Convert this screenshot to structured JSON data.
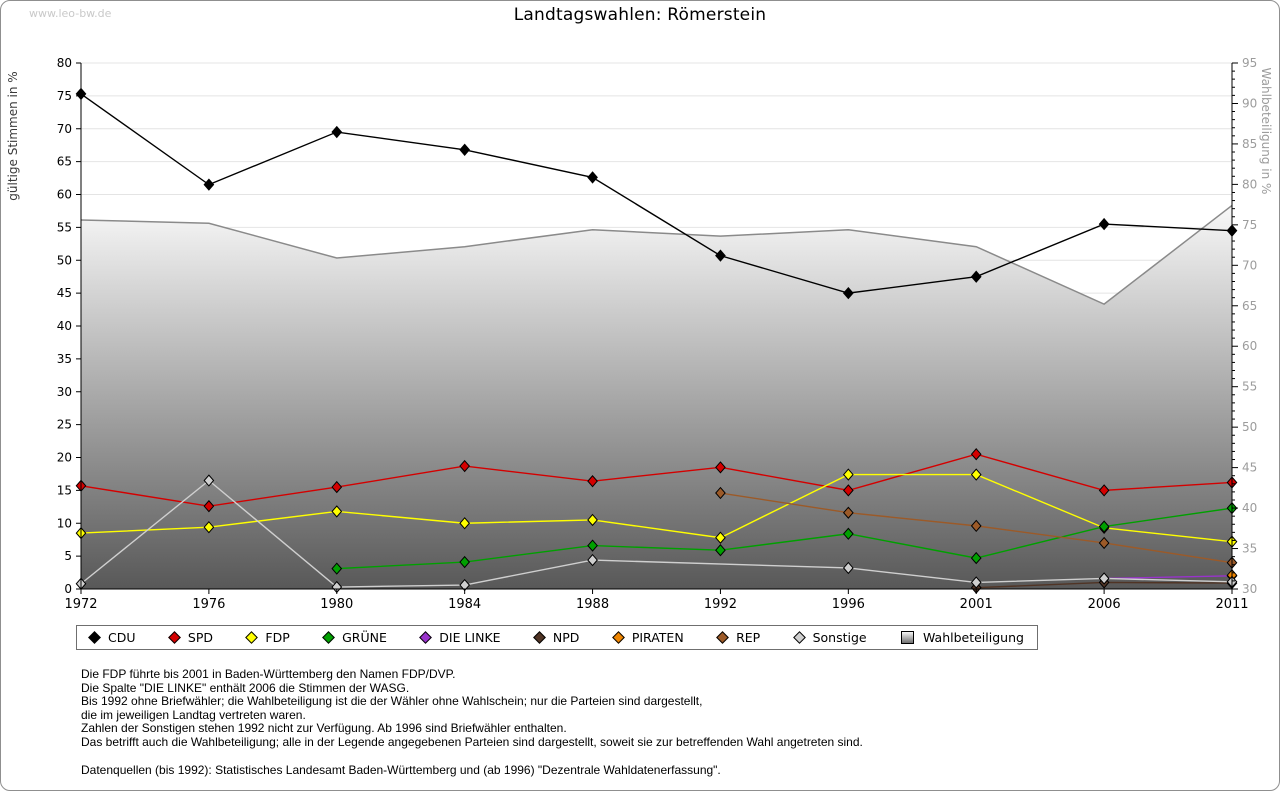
{
  "page": {
    "watermark": "www.leo-bw.de",
    "title": "Landtagswahlen: Römerstein"
  },
  "chart_data": {
    "type": "line",
    "title": "Landtagswahlen: Römerstein",
    "categories": [
      "1972",
      "1976",
      "1980",
      "1984",
      "1988",
      "1992",
      "1996",
      "2001",
      "2006",
      "2011"
    ],
    "left_axis": {
      "label": "gültige Stimmen in %",
      "min": 0,
      "max": 80,
      "tick_step": 5
    },
    "right_axis": {
      "label": "Wahlbeteiligung in %",
      "min": 30,
      "max": 95,
      "tick_step": 5
    },
    "grid": true,
    "legend_position": "bottom",
    "series": [
      {
        "name": "CDU",
        "type": "line",
        "axis": "left",
        "color": "#000000",
        "values": [
          75.3,
          61.5,
          69.5,
          66.8,
          62.6,
          50.7,
          45.0,
          47.5,
          55.5,
          54.5
        ]
      },
      {
        "name": "SPD",
        "type": "line",
        "axis": "left",
        "color": "#d40000",
        "values": [
          15.7,
          12.6,
          15.5,
          18.7,
          16.4,
          18.5,
          15.0,
          20.5,
          15.0,
          16.2
        ]
      },
      {
        "name": "FDP",
        "type": "line",
        "axis": "left",
        "color": "#ffff00",
        "values": [
          8.5,
          9.4,
          11.8,
          10.0,
          10.5,
          7.8,
          17.4,
          17.4,
          9.3,
          7.2
        ]
      },
      {
        "name": "GRÜNE",
        "type": "line",
        "axis": "left",
        "color": "#00a000",
        "values": [
          null,
          null,
          3.1,
          4.1,
          6.6,
          5.9,
          8.4,
          4.7,
          9.5,
          12.3
        ]
      },
      {
        "name": "DIE LINKE",
        "type": "line",
        "axis": "left",
        "color": "#9933cc",
        "values": [
          null,
          null,
          null,
          null,
          null,
          null,
          null,
          null,
          1.6,
          2.0
        ]
      },
      {
        "name": "NPD",
        "type": "line",
        "axis": "left",
        "color": "#503425",
        "values": [
          null,
          null,
          null,
          null,
          null,
          null,
          null,
          0.2,
          1.0,
          0.9
        ]
      },
      {
        "name": "PIRATEN",
        "type": "line",
        "axis": "left",
        "color": "#ee8500",
        "values": [
          null,
          null,
          null,
          null,
          null,
          null,
          null,
          null,
          null,
          2.1
        ]
      },
      {
        "name": "REP",
        "type": "line",
        "axis": "left",
        "color": "#9c5a28",
        "values": [
          null,
          null,
          null,
          null,
          null,
          14.6,
          11.6,
          9.6,
          7.0,
          4.0
        ]
      },
      {
        "name": "Sonstige",
        "type": "line",
        "axis": "left",
        "color": "#cfcfcf",
        "bridge_gaps": true,
        "values": [
          0.8,
          16.5,
          0.3,
          0.6,
          4.4,
          null,
          3.2,
          1.0,
          1.6,
          1.1
        ]
      },
      {
        "name": "Wahlbeteiligung",
        "type": "area",
        "axis": "right",
        "color": "#8a8a8a",
        "fill": "gray-gradient",
        "values": [
          75.6,
          75.2,
          70.9,
          72.3,
          74.4,
          73.6,
          74.4,
          72.3,
          65.2,
          77.4
        ]
      }
    ]
  },
  "footnotes": {
    "lines": [
      "Die FDP führte bis 2001 in Baden-Württemberg den Namen FDP/DVP.",
      "Die Spalte \"DIE LINKE\" enthält 2006 die Stimmen der WASG.",
      "Bis 1992 ohne Briefwähler; die Wahlbeteiligung ist die der Wähler ohne Wahlschein; nur die Parteien sind dargestellt,",
      "die im jeweiligen Landtag vertreten waren.",
      "Zahlen der Sonstigen stehen 1992 nicht zur Verfügung. Ab 1996 sind Briefwähler enthalten.",
      "Das betrifft auch die Wahlbeteiligung; alle in der Legende angegebenen Parteien sind dargestellt, soweit sie zur betreffenden Wahl angetreten sind."
    ],
    "source": "Datenquellen (bis 1992): Statistisches Landesamt Baden-Württemberg und (ab 1996) \"Dezentrale Wahldatenerfassung\"."
  }
}
